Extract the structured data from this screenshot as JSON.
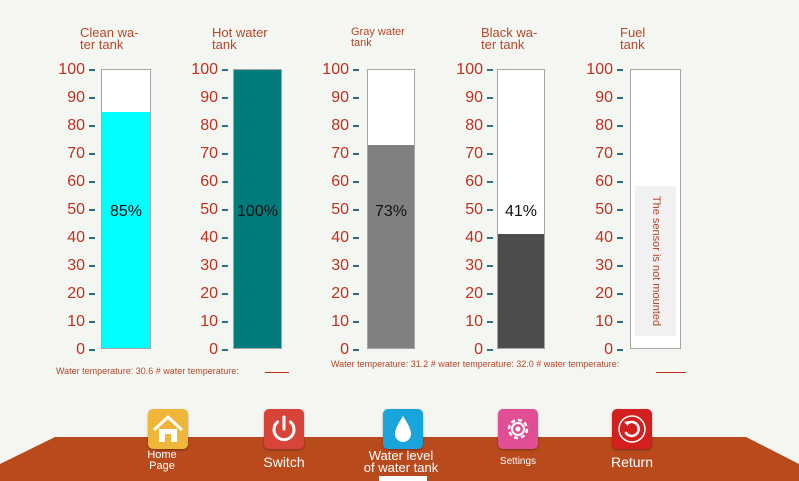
{
  "tanks": [
    {
      "title_line1": "Clean wa-",
      "title_line2": "ter tank",
      "value": 85,
      "percent_label": "85%",
      "fill_color": "#00ffff"
    },
    {
      "title_line1": "Hot water",
      "title_line2": "tank",
      "value": 100,
      "percent_label": "100%",
      "fill_color": "#007b7b"
    },
    {
      "title_line1": "Gray water",
      "title_line2": "tank",
      "value": 73,
      "percent_label": "73%",
      "fill_color": "#808080"
    },
    {
      "title_line1": "Black wa-",
      "title_line2": "ter tank",
      "value": 41,
      "percent_label": "41%",
      "fill_color": "#4d4d4d"
    },
    {
      "title_line1": "Fuel",
      "title_line2": "tank",
      "sensor_message": "The sensor is not mounted"
    }
  ],
  "scale_ticks": [
    "100",
    "90",
    "80",
    "70",
    "60",
    "50",
    "40",
    "30",
    "20",
    "10",
    "0"
  ],
  "temperature": {
    "clean_hot": "Water temperature: 30.6 # water temperature:",
    "gray_black": "Water temperature: 31.2 # water temperature: 32.0 # water temperature:"
  },
  "nav": {
    "home_line1": "Home",
    "home_line2": "Page",
    "switch": "Switch",
    "water_line1": "Water level",
    "water_line2": "of water tank",
    "settings": "Settings",
    "return": "Return"
  },
  "colors": {
    "label_red": "#b5472a",
    "platform": "#b84a1c",
    "home_btn": "#f0b63a",
    "switch_btn": "#d8443a",
    "water_btn": "#1aa4dc",
    "settings_btn": "#e04f93",
    "return_btn": "#d41f1f"
  }
}
